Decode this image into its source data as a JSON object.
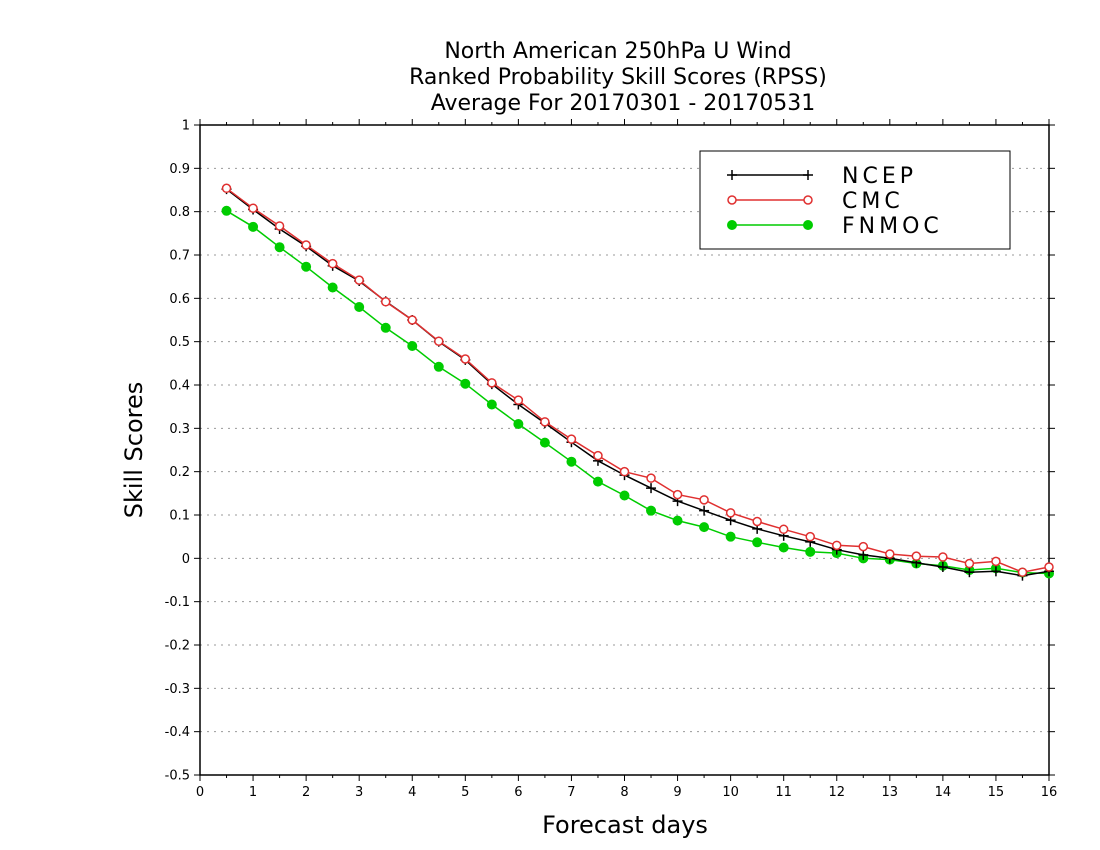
{
  "title_lines": [
    "North American 250hPa U Wind",
    "Ranked Probability Skill Scores (RPSS)",
    "Average For 20170301 - 20170531"
  ],
  "chart_data": {
    "type": "line",
    "xlabel": "Forecast days",
    "ylabel": "Skill Scores",
    "xlim": [
      0,
      16
    ],
    "ylim": [
      -0.5,
      1
    ],
    "x_ticks": [
      "0",
      "1",
      "2",
      "3",
      "4",
      "5",
      "6",
      "7",
      "8",
      "9",
      "10",
      "11",
      "12",
      "13",
      "14",
      "15",
      "16"
    ],
    "y_ticks": [
      "1",
      "0.9",
      "0.8",
      "0.7",
      "0.6",
      "0.5",
      "0.4",
      "0.3",
      "0.2",
      "0.1",
      "0",
      "-0.1",
      "-0.2",
      "-0.3",
      "-0.4",
      "-0.5"
    ],
    "grid": true,
    "legend_position": "top-right",
    "x": [
      0.5,
      1,
      1.5,
      2,
      2.5,
      3,
      3.5,
      4,
      4.5,
      5,
      5.5,
      6,
      6.5,
      7,
      7.5,
      8,
      8.5,
      9,
      9.5,
      10,
      10.5,
      11,
      11.5,
      12,
      12.5,
      13,
      13.5,
      14,
      14.5,
      15,
      15.5,
      16
    ],
    "series": [
      {
        "name": "NCEP",
        "color": "#000000",
        "marker": "plus",
        "values": [
          0.852,
          0.805,
          0.76,
          0.72,
          0.675,
          0.64,
          0.593,
          0.55,
          0.5,
          0.458,
          0.402,
          0.355,
          0.312,
          0.268,
          0.225,
          0.192,
          0.162,
          0.132,
          0.11,
          0.088,
          0.068,
          0.052,
          0.038,
          0.02,
          0.008,
          0.0,
          -0.01,
          -0.02,
          -0.032,
          -0.03,
          -0.04,
          -0.03
        ]
      },
      {
        "name": "CMC",
        "color": "#e03030",
        "marker": "open-circle",
        "values": [
          0.854,
          0.808,
          0.767,
          0.723,
          0.68,
          0.642,
          0.592,
          0.55,
          0.501,
          0.46,
          0.405,
          0.365,
          0.315,
          0.275,
          0.237,
          0.2,
          0.185,
          0.147,
          0.135,
          0.105,
          0.085,
          0.067,
          0.05,
          0.03,
          0.027,
          0.01,
          0.005,
          0.003,
          -0.012,
          -0.007,
          -0.032,
          -0.02
        ]
      },
      {
        "name": "FNMOC",
        "color": "#00cc00",
        "marker": "filled-circle",
        "values": [
          0.802,
          0.765,
          0.718,
          0.673,
          0.625,
          0.58,
          0.532,
          0.49,
          0.442,
          0.403,
          0.355,
          0.31,
          0.267,
          0.223,
          0.177,
          0.145,
          0.11,
          0.087,
          0.072,
          0.05,
          0.037,
          0.025,
          0.015,
          0.012,
          0.0,
          -0.003,
          -0.012,
          -0.017,
          -0.027,
          -0.023,
          -0.033,
          -0.035
        ]
      }
    ]
  }
}
